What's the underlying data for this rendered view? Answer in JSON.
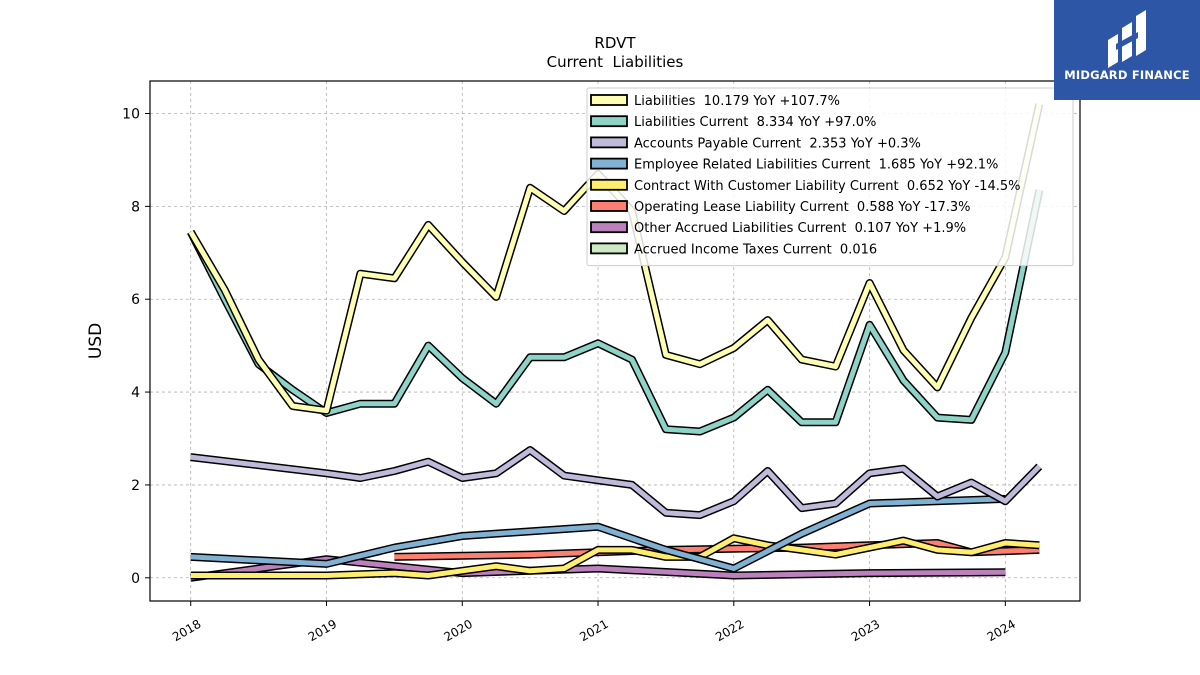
{
  "brand": {
    "name": "MIDGARD FINANCE",
    "bg_color": "#2d56a7"
  },
  "chart_data": {
    "type": "line",
    "title": "RDVT",
    "subtitle": "Current  Liabilities",
    "xlabel": "",
    "ylabel": "USD",
    "xlim": [
      2017.7,
      2024.55
    ],
    "ylim": [
      -0.5,
      10.7
    ],
    "x_ticks": [
      2018,
      2019,
      2020,
      2021,
      2022,
      2023,
      2024
    ],
    "x_tick_labels": [
      "2018",
      "2019",
      "2020",
      "2021",
      "2022",
      "2023",
      "2024"
    ],
    "y_ticks": [
      0,
      2,
      4,
      6,
      8,
      10
    ],
    "y_tick_labels": [
      "0",
      "2",
      "4",
      "6",
      "8",
      "10"
    ],
    "grid": true,
    "legend_position": "top-right",
    "series": [
      {
        "name": "Liabilities  10.179 YoY +107.7%",
        "color": "#ffffb3",
        "points": [
          [
            2018.0,
            7.45
          ],
          [
            2018.25,
            6.2
          ],
          [
            2018.5,
            4.7
          ],
          [
            2018.75,
            3.7
          ],
          [
            2019.0,
            3.6
          ],
          [
            2019.25,
            6.55
          ],
          [
            2019.5,
            6.45
          ],
          [
            2019.75,
            7.6
          ],
          [
            2020.0,
            6.8
          ],
          [
            2020.25,
            6.05
          ],
          [
            2020.5,
            8.4
          ],
          [
            2020.75,
            7.9
          ],
          [
            2021.0,
            8.7
          ],
          [
            2021.25,
            7.9
          ],
          [
            2021.5,
            4.8
          ],
          [
            2021.75,
            4.6
          ],
          [
            2022.0,
            4.95
          ],
          [
            2022.25,
            5.55
          ],
          [
            2022.5,
            4.7
          ],
          [
            2022.75,
            4.55
          ],
          [
            2023.0,
            6.35
          ],
          [
            2023.25,
            4.9
          ],
          [
            2023.5,
            4.1
          ],
          [
            2023.75,
            5.6
          ],
          [
            2024.0,
            6.9
          ],
          [
            2024.25,
            10.2
          ]
        ]
      },
      {
        "name": "Liabilities Current  8.334 YoY +97.0%",
        "color": "#8dd3c7",
        "points": [
          [
            2018.0,
            7.45
          ],
          [
            2018.25,
            6.0
          ],
          [
            2018.5,
            4.6
          ],
          [
            2018.75,
            4.05
          ],
          [
            2019.0,
            3.55
          ],
          [
            2019.25,
            3.75
          ],
          [
            2019.5,
            3.75
          ],
          [
            2019.75,
            5.0
          ],
          [
            2020.0,
            4.3
          ],
          [
            2020.25,
            3.75
          ],
          [
            2020.5,
            4.75
          ],
          [
            2020.75,
            4.75
          ],
          [
            2021.0,
            5.05
          ],
          [
            2021.25,
            4.7
          ],
          [
            2021.5,
            3.2
          ],
          [
            2021.75,
            3.15
          ],
          [
            2022.0,
            3.45
          ],
          [
            2022.25,
            4.05
          ],
          [
            2022.5,
            3.35
          ],
          [
            2022.75,
            3.35
          ],
          [
            2023.0,
            5.45
          ],
          [
            2023.25,
            4.25
          ],
          [
            2023.5,
            3.45
          ],
          [
            2023.75,
            3.4
          ],
          [
            2024.0,
            4.85
          ],
          [
            2024.25,
            8.35
          ]
        ]
      },
      {
        "name": "Accounts Payable Current  2.353 YoY +0.3%",
        "color": "#bebada",
        "points": [
          [
            2018.0,
            2.6
          ],
          [
            2019.0,
            2.25
          ],
          [
            2019.25,
            2.15
          ],
          [
            2019.5,
            2.3
          ],
          [
            2019.75,
            2.5
          ],
          [
            2020.0,
            2.15
          ],
          [
            2020.25,
            2.25
          ],
          [
            2020.5,
            2.75
          ],
          [
            2020.75,
            2.2
          ],
          [
            2021.0,
            2.1
          ],
          [
            2021.25,
            2.0
          ],
          [
            2021.5,
            1.4
          ],
          [
            2021.75,
            1.35
          ],
          [
            2022.0,
            1.65
          ],
          [
            2022.25,
            2.3
          ],
          [
            2022.5,
            1.5
          ],
          [
            2022.75,
            1.6
          ],
          [
            2023.0,
            2.25
          ],
          [
            2023.25,
            2.35
          ],
          [
            2023.5,
            1.75
          ],
          [
            2023.75,
            2.05
          ],
          [
            2024.0,
            1.65
          ],
          [
            2024.25,
            2.4
          ]
        ]
      },
      {
        "name": "Employee Related Liabilities Current  1.685 YoY +92.1%",
        "color": "#80b1d3",
        "points": [
          [
            2018.0,
            0.45
          ],
          [
            2019.0,
            0.3
          ],
          [
            2019.5,
            0.65
          ],
          [
            2020.0,
            0.9
          ],
          [
            2021.0,
            1.1
          ],
          [
            2021.5,
            0.6
          ],
          [
            2022.0,
            0.2
          ],
          [
            2022.5,
            0.95
          ],
          [
            2023.0,
            1.6
          ],
          [
            2024.0,
            1.7
          ]
        ]
      },
      {
        "name": "Contract With Customer Liability Current  0.652 YoY -14.5%",
        "color": "#ffed6f",
        "points": [
          [
            2018.0,
            0.05
          ],
          [
            2019.0,
            0.05
          ],
          [
            2019.5,
            0.1
          ],
          [
            2019.75,
            0.05
          ],
          [
            2020.0,
            0.15
          ],
          [
            2020.25,
            0.25
          ],
          [
            2020.5,
            0.15
          ],
          [
            2020.75,
            0.2
          ],
          [
            2021.0,
            0.6
          ],
          [
            2021.25,
            0.6
          ],
          [
            2021.5,
            0.45
          ],
          [
            2021.75,
            0.45
          ],
          [
            2022.0,
            0.85
          ],
          [
            2022.25,
            0.7
          ],
          [
            2022.5,
            0.6
          ],
          [
            2022.75,
            0.5
          ],
          [
            2023.0,
            0.65
          ],
          [
            2023.25,
            0.8
          ],
          [
            2023.5,
            0.6
          ],
          [
            2023.75,
            0.55
          ],
          [
            2024.0,
            0.75
          ],
          [
            2024.25,
            0.7
          ]
        ]
      },
      {
        "name": "Operating Lease Liability Current  0.588 YoY -17.3%",
        "color": "#fb8072",
        "points": [
          [
            2019.5,
            0.45
          ],
          [
            2020.5,
            0.5
          ],
          [
            2021.5,
            0.6
          ],
          [
            2022.5,
            0.65
          ],
          [
            2023.0,
            0.7
          ],
          [
            2023.5,
            0.75
          ],
          [
            2023.75,
            0.55
          ],
          [
            2024.25,
            0.6
          ]
        ]
      },
      {
        "name": "Other Accrued Liabilities Current  0.107 YoY +1.9%",
        "color": "#bc80bd",
        "points": [
          [
            2018.0,
            0.0
          ],
          [
            2019.0,
            0.4
          ],
          [
            2020.0,
            0.1
          ],
          [
            2021.0,
            0.2
          ],
          [
            2022.0,
            0.05
          ],
          [
            2023.0,
            0.1
          ],
          [
            2024.0,
            0.12
          ]
        ]
      },
      {
        "name": "Accrued Income Taxes Current  0.016",
        "color": "#ccebc5",
        "points": []
      }
    ]
  }
}
